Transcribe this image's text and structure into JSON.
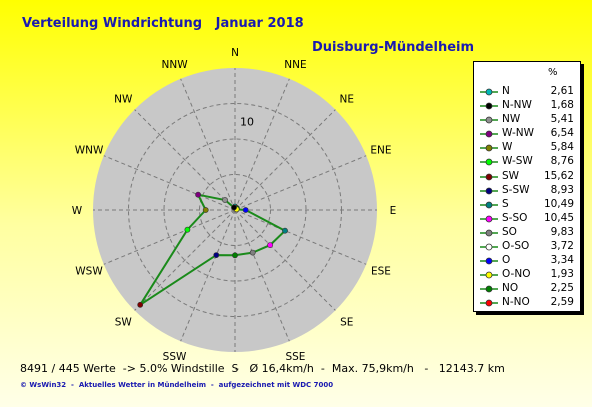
{
  "chart_data": {
    "type": "radar",
    "title": "Verteilung Windrichtung   Januar 2018",
    "subtitle": "Duisburg-Mündelheim",
    "legend_unit": "%",
    "stats": "8491 / 445 Werte  -> 5.0% Windstille   -   Ø 16,4km/h  -  Max. 75,9km/h   -   12143.7 km",
    "footer": "© WsWin32  -  Aktuelles Wetter in Mündelheim  -  aufgezeichnet mit WDC 7000",
    "radial_tick": "10",
    "rmax": 16,
    "ring_step": 4,
    "directions": [
      "N",
      "NNE",
      "NE",
      "ENE",
      "E",
      "ESE",
      "SE",
      "SSE",
      "S",
      "SSW",
      "SW",
      "WSW",
      "W",
      "WNW",
      "NW",
      "NNW"
    ],
    "values": [
      0.4,
      0.3,
      0.3,
      0.2,
      1.2,
      6.1,
      5.6,
      5.2,
      5.1,
      5.5,
      15.1,
      5.8,
      3.3,
      4.5,
      1.6,
      0.3
    ],
    "legend": [
      {
        "name": "N",
        "value": "2,61",
        "color": "#00b8b8"
      },
      {
        "name": "N-NW",
        "value": "1,68",
        "color": "#000000"
      },
      {
        "name": "NW",
        "value": "5,41",
        "color": "#909090"
      },
      {
        "name": "W-NW",
        "value": "6,54",
        "color": "#800080"
      },
      {
        "name": "W",
        "value": "5,84",
        "color": "#808000"
      },
      {
        "name": "W-SW",
        "value": "8,76",
        "color": "#00ff00"
      },
      {
        "name": "SW",
        "value": "15,62",
        "color": "#800000"
      },
      {
        "name": "S-SW",
        "value": "8,93",
        "color": "#000080"
      },
      {
        "name": "S",
        "value": "10,49",
        "color": "#008080"
      },
      {
        "name": "S-SO",
        "value": "10,45",
        "color": "#ff00ff"
      },
      {
        "name": "SO",
        "value": "9,83",
        "color": "#808080"
      },
      {
        "name": "O-SO",
        "value": "3,72",
        "color": "#ffffff"
      },
      {
        "name": "O",
        "value": "3,34",
        "color": "#0000ff"
      },
      {
        "name": "O-NO",
        "value": "1,93",
        "color": "#ffff00"
      },
      {
        "name": "NO",
        "value": "2,25",
        "color": "#008000"
      },
      {
        "name": "N-NO",
        "value": "2,59",
        "color": "#ff0000"
      }
    ],
    "point_colors": [
      "#00b8b8",
      "#ff0000",
      "#008000",
      "#ffff00",
      "#0000ff",
      "#008080",
      "#ff00ff",
      "#808080",
      "#008000",
      "#000080",
      "#800000",
      "#00ff00",
      "#808000",
      "#800080",
      "#909090",
      "#000000"
    ],
    "line_color": "#1a8a1a",
    "disc_color": "#c8c8c8",
    "grid_color": "#7a7a7a"
  }
}
